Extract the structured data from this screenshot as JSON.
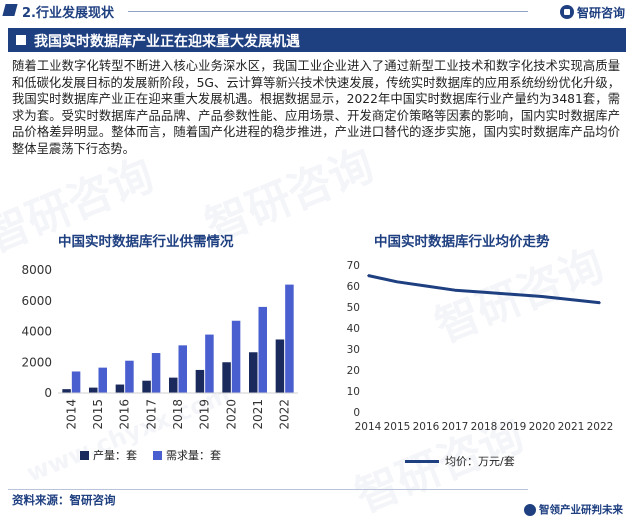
{
  "header": {
    "section_title": "2.行业发展现状",
    "brand_name": "智研咨询"
  },
  "banner": {
    "title": "我国实时数据库产业正在迎来重大发展机遇"
  },
  "paragraph": "随着工业数字化转型不断进入核心业务深水区，我国工业企业进入了通过新型工业技术和数字化技术实现高质量和低碳化发展目标的发展新阶段，5G、云计算等新兴技术快速发展，传统实时数据库的应用系统纷纷优化升级，我国实时数据库产业正在迎来重大发展机遇。根据数据显示，2022年中国实时数据库行业产量约为3481套，需求为套。受实时数据库产品品牌、产品参数性能、应用场景、开发商定价策略等因素的影响，国内实时数据库产品价格差异明显。整体而言，随着国产化进程的稳步推进，产业进口替代的逐步实施，国内实时数据库产品均价整体呈震荡下行态势。",
  "footer": {
    "source": "资料来源：智研咨询",
    "tagline": "智领产业研判未来"
  },
  "watermark": {
    "text_cn": "智研咨询",
    "text_en": "www.chyxx.com"
  },
  "colors": {
    "primary": "#1e3f80",
    "production": "#1b2a5c",
    "demand": "#4a5fcf",
    "price_line": "#1e3f80"
  },
  "chart_data": [
    {
      "type": "bar",
      "title": "中国实时数据库行业供需情况",
      "categories": [
        "2014",
        "2015",
        "2016",
        "2017",
        "2018",
        "2019",
        "2020",
        "2021",
        "2022"
      ],
      "series": [
        {
          "name": "产量：套",
          "values": [
            250,
            350,
            550,
            800,
            1000,
            1500,
            2000,
            2650,
            3481
          ]
        },
        {
          "name": "需求量：套",
          "values": [
            1400,
            1650,
            2100,
            2600,
            3100,
            3800,
            4700,
            5600,
            7050
          ]
        }
      ],
      "ylim": [
        0,
        8000
      ],
      "yticks": [
        "0",
        "2000",
        "4000",
        "6000",
        "8000"
      ],
      "grid": false,
      "legend": "bottom"
    },
    {
      "type": "line",
      "title": "中国实时数据库行业均价走势",
      "categories": [
        "2014",
        "2015",
        "2016",
        "2017",
        "2018",
        "2019",
        "2020",
        "2021",
        "2022"
      ],
      "series": [
        {
          "name": "均价：万元/套",
          "values": [
            65,
            62,
            60,
            58,
            57,
            56,
            55,
            53.5,
            52
          ]
        }
      ],
      "ylim": [
        0,
        70
      ],
      "yticks": [
        "0",
        "10",
        "20",
        "30",
        "40",
        "50",
        "60",
        "70"
      ],
      "grid": false,
      "legend": "bottom"
    }
  ]
}
